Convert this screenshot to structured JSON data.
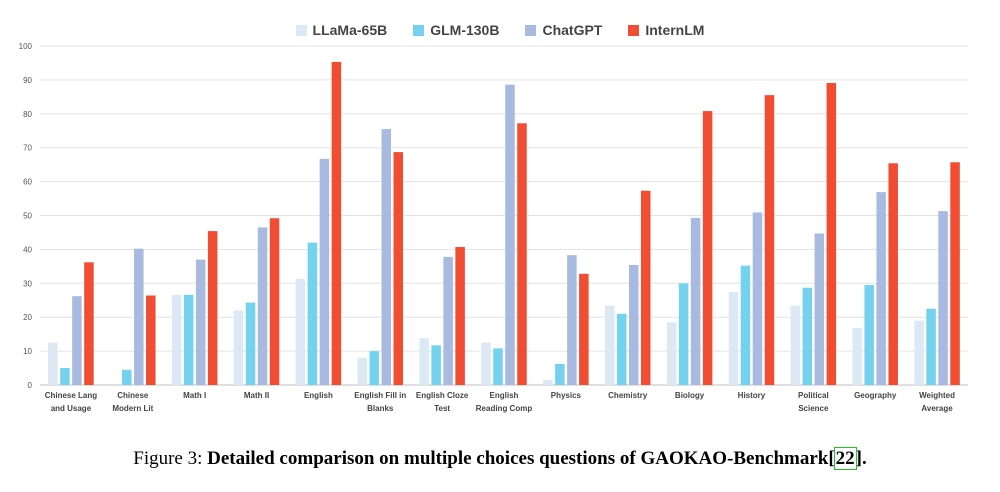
{
  "chart_data": {
    "type": "bar",
    "categories": [
      "Chinese Lang\nand Usage",
      "Chinese\nModern Lit",
      "Math I",
      "Math II",
      "English",
      "English Fill in\nBlanks",
      "English Cloze\nTest",
      "English\nReading Comp",
      "Physics",
      "Chemistry",
      "Biology",
      "History",
      "Political\nScience",
      "Geography",
      "Weighted\nAverage"
    ],
    "series": [
      {
        "name": "LLaMa-65B",
        "color": "#dde8f5",
        "values": [
          12.5,
          0,
          26.6,
          22,
          31.3,
          8,
          13.8,
          12.5,
          1.5,
          23.4,
          18.5,
          27.4,
          23.4,
          16.8,
          19
        ]
      },
      {
        "name": "GLM-130B",
        "color": "#74d2ef",
        "values": [
          5,
          4.5,
          26.6,
          24.3,
          42,
          10,
          11.7,
          10.8,
          6.2,
          21,
          30,
          35.2,
          28.7,
          29.5,
          22.5
        ]
      },
      {
        "name": "ChatGPT",
        "color": "#a8badf",
        "values": [
          26.2,
          40.2,
          37,
          46.5,
          66.7,
          75.5,
          37.8,
          88.6,
          38.3,
          35.4,
          49.3,
          50.9,
          44.7,
          56.9,
          51.3
        ]
      },
      {
        "name": "InternLM",
        "color": "#f04d32",
        "values": [
          36.2,
          26.4,
          45.4,
          49.2,
          95.3,
          68.7,
          40.7,
          77.2,
          32.8,
          57.3,
          80.8,
          85.5,
          89.1,
          65.4,
          65.7
        ]
      }
    ],
    "yticks": [
      "0",
      "10",
      "20",
      "30",
      "40",
      "50",
      "60",
      "70",
      "80",
      "90",
      "100"
    ],
    "ylim": [
      0,
      100
    ],
    "grid": true,
    "legend_position": "top-center"
  },
  "caption": {
    "label": "Figure 3: ",
    "text": "Detailed comparison on multiple choices questions of GAOKAO-Benchmark",
    "cite_open": "[",
    "cite_num": "22",
    "cite_close": "]",
    "end": "."
  }
}
